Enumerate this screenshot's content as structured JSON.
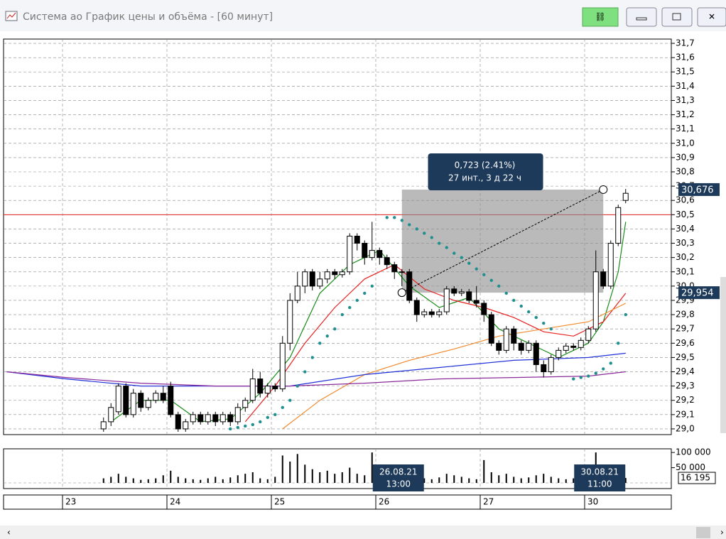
{
  "chart_data": {
    "type": "candlestick",
    "title": "Система ао График цены и объёма - [60 минут]",
    "categories": [
      "23",
      null,
      null,
      null,
      null,
      null,
      null,
      null,
      null,
      null,
      null,
      null,
      null,
      null,
      "24",
      null,
      null,
      null,
      null,
      null,
      null,
      null,
      null,
      null,
      null,
      null,
      null,
      null,
      "25",
      null,
      null,
      null,
      null,
      null,
      null,
      null,
      null,
      null,
      null,
      null,
      null,
      null,
      "26",
      null,
      null,
      null,
      null,
      null,
      null,
      null,
      null,
      null,
      null,
      null,
      null,
      null,
      "27",
      null,
      null,
      null,
      null,
      null,
      null,
      null,
      null,
      null,
      null,
      null,
      null,
      null,
      "30",
      null,
      null,
      null,
      null,
      null
    ],
    "open": [
      null,
      null,
      null,
      null,
      null,
      29.0,
      29.05,
      29.12,
      29.3,
      29.1,
      29.25,
      29.15,
      29.2,
      29.25,
      29.3,
      29.1,
      29.0,
      29.05,
      29.1,
      29.05,
      29.1,
      29.05,
      29.1,
      29.05,
      29.15,
      29.2,
      29.35,
      29.25,
      29.3,
      29.28,
      29.6,
      29.9,
      30.0,
      30.1,
      30.0,
      30.05,
      30.1,
      30.08,
      30.1,
      30.35,
      30.3,
      30.2,
      30.25,
      30.2,
      30.15,
      30.1,
      30.1,
      29.9,
      29.8,
      29.82,
      29.8,
      29.82,
      29.98,
      29.95,
      29.96,
      29.9,
      29.88,
      29.8,
      29.6,
      29.55,
      29.7,
      29.6,
      29.55,
      29.6,
      29.45,
      29.4,
      29.5,
      29.55,
      29.58,
      29.57,
      29.62,
      29.7,
      30.1,
      30.0,
      30.3,
      30.6
    ],
    "high": [
      null,
      null,
      null,
      null,
      null,
      29.08,
      29.18,
      29.32,
      29.32,
      29.28,
      29.27,
      29.22,
      29.27,
      29.3,
      29.33,
      29.12,
      29.07,
      29.12,
      29.12,
      29.12,
      29.12,
      29.12,
      29.12,
      29.18,
      29.22,
      29.42,
      29.4,
      29.32,
      29.32,
      29.65,
      29.95,
      30.1,
      30.12,
      30.12,
      30.1,
      30.12,
      30.12,
      30.12,
      30.37,
      30.37,
      30.32,
      30.45,
      30.27,
      30.22,
      30.17,
      30.12,
      30.12,
      29.92,
      29.84,
      29.84,
      29.84,
      30.0,
      30.0,
      29.98,
      29.98,
      30.0,
      29.9,
      29.82,
      29.62,
      29.72,
      29.72,
      29.62,
      29.62,
      29.62,
      29.48,
      29.52,
      29.57,
      29.6,
      29.6,
      29.64,
      29.72,
      30.25,
      30.12,
      30.32,
      30.57,
      30.68
    ],
    "low": [
      null,
      null,
      null,
      null,
      null,
      28.98,
      29.02,
      29.1,
      29.08,
      29.08,
      29.12,
      29.13,
      29.18,
      29.18,
      29.08,
      28.98,
      28.98,
      29.03,
      29.03,
      29.03,
      29.02,
      29.03,
      29.02,
      29.03,
      29.12,
      29.18,
      29.22,
      29.22,
      29.26,
      29.26,
      29.55,
      29.88,
      29.95,
      29.97,
      29.98,
      30.02,
      30.05,
      30.06,
      30.08,
      30.25,
      30.15,
      30.18,
      30.15,
      30.12,
      30.05,
      30.0,
      29.88,
      29.75,
      29.78,
      29.78,
      29.78,
      29.8,
      29.93,
      29.93,
      29.88,
      29.85,
      29.75,
      29.58,
      29.52,
      29.53,
      29.55,
      29.52,
      29.53,
      29.4,
      29.36,
      29.38,
      29.48,
      29.53,
      29.55,
      29.55,
      29.6,
      29.68,
      29.98,
      29.98,
      30.28,
      30.58
    ],
    "close": [
      null,
      null,
      null,
      null,
      null,
      29.05,
      29.15,
      29.3,
      29.1,
      29.25,
      29.15,
      29.2,
      29.25,
      29.2,
      29.1,
      29.0,
      29.05,
      29.1,
      29.05,
      29.1,
      29.05,
      29.1,
      29.05,
      29.15,
      29.2,
      29.35,
      29.25,
      29.3,
      29.28,
      29.6,
      29.9,
      30.0,
      30.1,
      30.0,
      30.05,
      30.1,
      30.08,
      30.1,
      30.35,
      30.3,
      30.2,
      30.25,
      30.2,
      30.15,
      30.1,
      30.1,
      29.9,
      29.8,
      29.82,
      29.8,
      29.82,
      29.98,
      29.95,
      29.96,
      29.9,
      29.88,
      29.8,
      29.6,
      29.55,
      29.7,
      29.6,
      29.55,
      29.6,
      29.45,
      29.4,
      29.5,
      29.55,
      29.58,
      29.57,
      29.62,
      29.7,
      30.1,
      30.0,
      30.3,
      30.55,
      30.65
    ],
    "ylim": [
      28.96,
      31.73
    ],
    "yticks": [
      {
        "value": 29.0,
        "label": "29,0"
      },
      {
        "value": 29.1,
        "label": "29,1"
      },
      {
        "value": 29.2,
        "label": "29,2"
      },
      {
        "value": 29.3,
        "label": "29,3"
      },
      {
        "value": 29.4,
        "label": "29,4"
      },
      {
        "value": 29.5,
        "label": "29,5"
      },
      {
        "value": 29.6,
        "label": "29,6"
      },
      {
        "value": 29.7,
        "label": "29,7"
      },
      {
        "value": 29.8,
        "label": "29,8"
      },
      {
        "value": 29.9,
        "label": "29,9"
      },
      {
        "value": 30.0,
        "label": "30,0"
      },
      {
        "value": 30.1,
        "label": "30,1"
      },
      {
        "value": 30.2,
        "label": "30,2"
      },
      {
        "value": 30.3,
        "label": "30,3"
      },
      {
        "value": 30.4,
        "label": "30,4"
      },
      {
        "value": 30.5,
        "label": "30,5"
      },
      {
        "value": 30.6,
        "label": "30,6"
      },
      {
        "value": 30.7,
        "label": "30,7"
      },
      {
        "value": 30.8,
        "label": "30,8"
      },
      {
        "value": 30.9,
        "label": "30,9"
      },
      {
        "value": 31.0,
        "label": "31,0"
      },
      {
        "value": 31.1,
        "label": "31,1"
      },
      {
        "value": 31.2,
        "label": "31,2"
      },
      {
        "value": 31.3,
        "label": "31,3"
      },
      {
        "value": 31.4,
        "label": "31,4"
      },
      {
        "value": 31.5,
        "label": "31,5"
      },
      {
        "value": 31.6,
        "label": "31,6"
      },
      {
        "value": 31.7,
        "label": "31,7"
      }
    ],
    "grid": true,
    "hline": {
      "value": 30.5,
      "color": "#e02020"
    },
    "lines": [
      {
        "color": "#1a8c1a",
        "x": [
          6,
          10,
          14,
          18,
          22,
          26,
          30,
          34,
          38,
          42,
          46,
          50,
          54,
          58,
          62,
          66,
          70,
          72,
          74,
          75
        ],
        "values": [
          29.05,
          29.2,
          29.2,
          29.05,
          29.07,
          29.25,
          29.5,
          29.95,
          30.15,
          30.25,
          30.0,
          29.85,
          29.92,
          29.7,
          29.6,
          29.5,
          29.6,
          29.75,
          30.1,
          30.45
        ]
      },
      {
        "color": "#e82020",
        "x": [
          24,
          28,
          32,
          36,
          40,
          44,
          48,
          52,
          56,
          60,
          64,
          68,
          72,
          75
        ],
        "values": [
          29.05,
          29.3,
          29.6,
          29.85,
          30.05,
          30.15,
          29.98,
          29.9,
          29.85,
          29.78,
          29.68,
          29.65,
          29.75,
          29.95
        ]
      },
      {
        "color": "#f08a30",
        "x": [
          29,
          34,
          40,
          46,
          52,
          58,
          64,
          70,
          75
        ],
        "values": [
          29.0,
          29.2,
          29.38,
          29.48,
          29.56,
          29.65,
          29.7,
          29.75,
          29.88
        ]
      },
      {
        "color": "#2030d8",
        "x": [
          -8,
          0,
          10,
          20,
          30,
          40,
          50,
          60,
          70,
          75
        ],
        "values": [
          29.4,
          29.35,
          29.3,
          29.3,
          29.3,
          29.38,
          29.43,
          29.48,
          29.5,
          29.53
        ]
      },
      {
        "color": "#8a2a9a",
        "x": [
          -8,
          0,
          10,
          20,
          30,
          40,
          50,
          60,
          70,
          75
        ],
        "values": [
          29.4,
          29.36,
          29.32,
          29.3,
          29.3,
          29.32,
          29.35,
          29.36,
          29.37,
          29.4
        ]
      }
    ],
    "sar": {
      "color": "#1f8f8f",
      "x": [
        22,
        23,
        24,
        25,
        26,
        27,
        28,
        29,
        30,
        31,
        32,
        33,
        34,
        35,
        36,
        37,
        38,
        39,
        40,
        41,
        43,
        44,
        45,
        46,
        47,
        48,
        49,
        50,
        51,
        52,
        53,
        54,
        55,
        56,
        57,
        58,
        59,
        60,
        61,
        62,
        63,
        64,
        65,
        68,
        69,
        70,
        71,
        72,
        73,
        74,
        75
      ],
      "values": [
        29.0,
        29.01,
        29.02,
        29.03,
        29.05,
        29.08,
        29.1,
        29.15,
        29.2,
        29.3,
        29.4,
        29.5,
        29.6,
        29.65,
        29.7,
        29.8,
        29.85,
        29.9,
        29.95,
        30.0,
        30.48,
        30.48,
        30.46,
        30.43,
        30.4,
        30.37,
        30.34,
        30.3,
        30.27,
        30.23,
        30.2,
        30.16,
        30.12,
        30.08,
        30.04,
        30.0,
        29.95,
        29.9,
        29.86,
        29.82,
        29.78,
        29.74,
        29.7,
        29.35,
        29.36,
        29.37,
        29.39,
        29.42,
        29.46,
        29.6,
        29.8
      ]
    },
    "measure": {
      "x": [
        45,
        72
      ],
      "values": [
        29.954,
        30.676
      ],
      "value_labels": [
        "29,954",
        "30,676"
      ],
      "text": [
        "0,723 (2.41%)",
        "27 инт., 3 д 22 ч"
      ]
    },
    "cursor_labels": [
      {
        "x": 45,
        "date": "26.08.21",
        "time": "13:00"
      },
      {
        "x": 72,
        "date": "30.08.21",
        "time": "11:00"
      }
    ],
    "volume": {
      "values": [
        null,
        null,
        null,
        null,
        null,
        15000,
        20000,
        30000,
        20000,
        15000,
        10000,
        12000,
        15000,
        25000,
        40000,
        20000,
        15000,
        12000,
        10000,
        15000,
        20000,
        12000,
        18000,
        25000,
        30000,
        35000,
        15000,
        12000,
        20000,
        90000,
        70000,
        95000,
        60000,
        45000,
        35000,
        40000,
        30000,
        35000,
        50000,
        30000,
        25000,
        100000,
        20000,
        15000,
        12000,
        18000,
        40000,
        20000,
        15000,
        12000,
        18000,
        30000,
        25000,
        20000,
        15000,
        12000,
        75000,
        35000,
        25000,
        30000,
        20000,
        15000,
        18000,
        25000,
        30000,
        20000,
        15000,
        12000,
        15000,
        18000,
        20000,
        100000,
        40000,
        50000,
        45000,
        16195
      ],
      "ylim": [
        0,
        112000
      ],
      "yticks": [
        {
          "value": 100000,
          "label": "100 000"
        },
        {
          "value": 50000,
          "label": "50 000"
        }
      ],
      "current": {
        "value": 16195,
        "label": "16 195"
      }
    }
  }
}
